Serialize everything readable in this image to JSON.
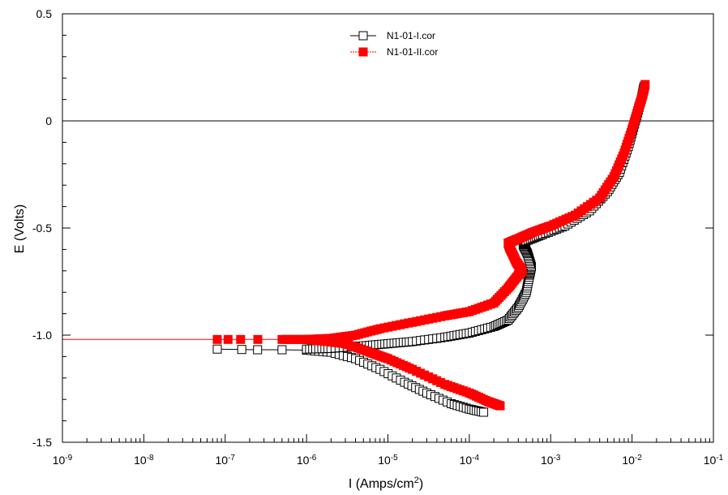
{
  "chart_data": {
    "type": "scatter",
    "xscale": "log",
    "xlim": [
      1e-09,
      0.1
    ],
    "ylim": [
      -1.5,
      0.5
    ],
    "xlabel": "I (Amps/cm²)",
    "xlabel_main": "I (Amps/cm",
    "xlabel_sup": "2",
    "xlabel_end": ")",
    "ylabel": "E (Volts)",
    "x_tick_labels": [
      {
        "base": "10",
        "exp": "-9"
      },
      {
        "base": "10",
        "exp": "-8"
      },
      {
        "base": "10",
        "exp": "-7"
      },
      {
        "base": "10",
        "exp": "-6"
      },
      {
        "base": "10",
        "exp": "-5"
      },
      {
        "base": "10",
        "exp": "-4"
      },
      {
        "base": "10",
        "exp": "-3"
      },
      {
        "base": "10",
        "exp": "-2"
      },
      {
        "base": "10",
        "exp": "-1"
      }
    ],
    "y_ticks": [
      -1.5,
      -1.0,
      -0.5,
      0,
      0.5
    ],
    "y_tick_labels": [
      "-1.5",
      "-1.0",
      "-0.5",
      "0",
      "0.5"
    ],
    "reference_line_y": 0,
    "legend_position": "top-center",
    "series": [
      {
        "name": "N1-01-I.cor",
        "color": "#000000",
        "marker": "open-square",
        "cathodic": [
          [
            8e-08,
            -1.065
          ],
          [
            1.6e-07,
            -1.067
          ],
          [
            2.5e-07,
            -1.068
          ],
          [
            5e-07,
            -1.068
          ],
          [
            1e-06,
            -1.07
          ],
          [
            2e-06,
            -1.08
          ],
          [
            4e-06,
            -1.11
          ],
          [
            8e-06,
            -1.16
          ],
          [
            1.6e-05,
            -1.22
          ],
          [
            3e-05,
            -1.27
          ],
          [
            6e-05,
            -1.32
          ],
          [
            0.0001,
            -1.345
          ],
          [
            0.00015,
            -1.36
          ]
        ],
        "anodic": [
          [
            1e-06,
            -1.065
          ],
          [
            2e-06,
            -1.062
          ],
          [
            5e-06,
            -1.05
          ],
          [
            1e-05,
            -1.04
          ],
          [
            2e-05,
            -1.03
          ],
          [
            5e-05,
            -1.01
          ],
          [
            0.0001,
            -0.99
          ],
          [
            0.0002,
            -0.96
          ],
          [
            0.0003,
            -0.93
          ],
          [
            0.0004,
            -0.87
          ],
          [
            0.0005,
            -0.8
          ],
          [
            0.00055,
            -0.72
          ],
          [
            0.00058,
            -0.68
          ],
          [
            0.00052,
            -0.62
          ],
          [
            0.00046,
            -0.58
          ],
          [
            0.0005,
            -0.56
          ],
          [
            0.0008,
            -0.53
          ],
          [
            0.0015,
            -0.49
          ],
          [
            0.003,
            -0.42
          ],
          [
            0.005,
            -0.33
          ],
          [
            0.007,
            -0.24
          ],
          [
            0.009,
            -0.12
          ],
          [
            0.011,
            0
          ],
          [
            0.013,
            0.1
          ],
          [
            0.014,
            0.16
          ]
        ]
      },
      {
        "name": "N1-01-II.cor",
        "color": "#ff0000",
        "marker": "filled-square",
        "ocp_line_y": -1.02,
        "cathodic": [
          [
            8e-08,
            -1.02
          ],
          [
            1.2e-07,
            -1.02
          ],
          [
            2e-07,
            -1.02
          ],
          [
            5e-07,
            -1.02
          ],
          [
            1e-06,
            -1.02
          ],
          [
            3e-06,
            -1.04
          ],
          [
            6e-06,
            -1.08
          ],
          [
            1e-05,
            -1.11
          ],
          [
            2e-05,
            -1.16
          ],
          [
            5e-05,
            -1.23
          ],
          [
            0.0001,
            -1.27
          ],
          [
            0.00017,
            -1.31
          ],
          [
            0.00024,
            -1.33
          ]
        ],
        "anodic": [
          [
            1e-06,
            -1.02
          ],
          [
            2e-06,
            -1.015
          ],
          [
            4e-06,
            -1.0
          ],
          [
            8e-06,
            -0.97
          ],
          [
            2e-05,
            -0.94
          ],
          [
            5e-05,
            -0.91
          ],
          [
            0.0001,
            -0.89
          ],
          [
            0.0002,
            -0.85
          ],
          [
            0.0003,
            -0.78
          ],
          [
            0.0004,
            -0.72
          ],
          [
            0.00045,
            -0.7
          ],
          [
            0.00038,
            -0.66
          ],
          [
            0.00032,
            -0.6
          ],
          [
            0.0003,
            -0.57
          ],
          [
            0.0004,
            -0.55
          ],
          [
            0.0006,
            -0.52
          ],
          [
            0.001,
            -0.49
          ],
          [
            0.002,
            -0.44
          ],
          [
            0.004,
            -0.36
          ],
          [
            0.006,
            -0.26
          ],
          [
            0.008,
            -0.15
          ],
          [
            0.01,
            -0.04
          ],
          [
            0.012,
            0.06
          ],
          [
            0.0135,
            0.12
          ],
          [
            0.0145,
            0.17
          ]
        ]
      }
    ]
  }
}
